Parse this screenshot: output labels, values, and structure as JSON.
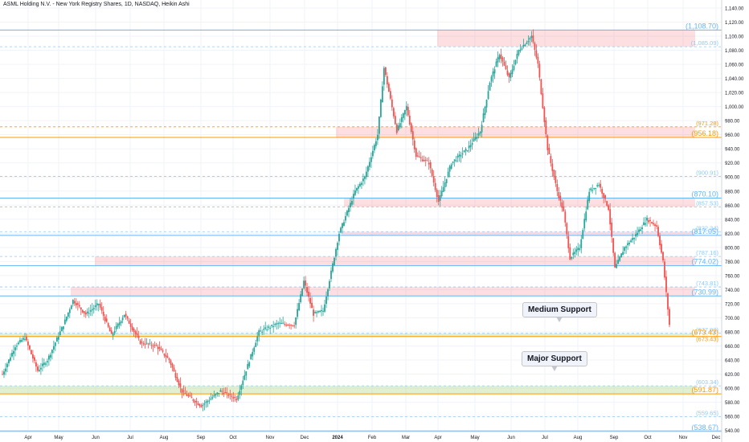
{
  "title": "ASML Holding N.V. - New York Registry Shares, 1D, NASDAQ, Heikin Ashi",
  "colors": {
    "up": "#26a69a",
    "down": "#ef5350",
    "blue_line": "#64b5f6",
    "orange_line": "#ff9800",
    "zone_red": "#f7c4c4",
    "zone_green": "#d9f0c3",
    "grid": "#f0f3fa"
  },
  "chart_data": {
    "type": "candlestick",
    "title": "ASML Holding N.V. - New York Registry Shares, 1D, NASDAQ, Heikin Ashi",
    "ylim": [
      535,
      1140
    ],
    "y_ticks": [
      540,
      560,
      580,
      600,
      620,
      640,
      660,
      680,
      700,
      720,
      740,
      760,
      780,
      800,
      820,
      840,
      860,
      880,
      900,
      920,
      940,
      960,
      980,
      1000,
      1020,
      1040,
      1060,
      1080,
      1100,
      1120,
      1140
    ],
    "y_tick_labels": [
      "540.00",
      "560.00",
      "580.00",
      "600.00",
      "620.00",
      "640.00",
      "660.00",
      "680.00",
      "700.00",
      "720.00",
      "740.00",
      "760.00",
      "780.00",
      "800.00",
      "820.00",
      "840.00",
      "860.00",
      "880.00",
      "900.00",
      "920.00",
      "940.00",
      "960.00",
      "980.00",
      "1,000.00",
      "1,020.00",
      "1,040.00",
      "1,060.00",
      "1,080.00",
      "1,100.00",
      "1,120.00",
      "1,140.00"
    ],
    "x_labels": [
      "Apr",
      "May",
      "Jun",
      "Jul",
      "Aug",
      "Sep",
      "Oct",
      "Nov",
      "Dec",
      "2024",
      "Feb",
      "Mar",
      "Apr",
      "May",
      "Jun",
      "Jul",
      "Aug",
      "Sep",
      "Oct",
      "Nov",
      "Dec"
    ],
    "series_anchors": [
      [
        0,
        620
      ],
      [
        8,
        660
      ],
      [
        14,
        672
      ],
      [
        22,
        625
      ],
      [
        28,
        640
      ],
      [
        38,
        690
      ],
      [
        44,
        725
      ],
      [
        52,
        705
      ],
      [
        60,
        720
      ],
      [
        68,
        675
      ],
      [
        76,
        705
      ],
      [
        86,
        665
      ],
      [
        96,
        660
      ],
      [
        104,
        640
      ],
      [
        112,
        595
      ],
      [
        124,
        575
      ],
      [
        136,
        596
      ],
      [
        146,
        585
      ],
      [
        160,
        680
      ],
      [
        172,
        692
      ],
      [
        182,
        690
      ],
      [
        188,
        752
      ],
      [
        194,
        705
      ],
      [
        200,
        710
      ],
      [
        210,
        820
      ],
      [
        220,
        880
      ],
      [
        226,
        900
      ],
      [
        234,
        960
      ],
      [
        238,
        1055
      ],
      [
        246,
        965
      ],
      [
        252,
        1000
      ],
      [
        258,
        930
      ],
      [
        266,
        920
      ],
      [
        272,
        865
      ],
      [
        280,
        920
      ],
      [
        290,
        940
      ],
      [
        298,
        965
      ],
      [
        304,
        1035
      ],
      [
        310,
        1075
      ],
      [
        316,
        1040
      ],
      [
        322,
        1080
      ],
      [
        330,
        1100
      ],
      [
        334,
        1060
      ],
      [
        340,
        940
      ],
      [
        346,
        880
      ],
      [
        350,
        850
      ],
      [
        354,
        785
      ],
      [
        360,
        800
      ],
      [
        366,
        880
      ],
      [
        372,
        890
      ],
      [
        378,
        855
      ],
      [
        382,
        770
      ],
      [
        388,
        800
      ],
      [
        394,
        815
      ],
      [
        402,
        840
      ],
      [
        408,
        830
      ],
      [
        412,
        780
      ],
      [
        416,
        690
      ]
    ],
    "levels": [
      {
        "label": "(1,108.70)",
        "value": 1108.7,
        "color": "#64b5f6",
        "style": "solid"
      },
      {
        "label": "(1,085.09)",
        "value": 1085.09,
        "color": "#90caf9",
        "style": "dashed"
      },
      {
        "label": "(971.28)",
        "value": 971.28,
        "color": "#ff9800",
        "style": "dashed"
      },
      {
        "label": "(956.18)",
        "value": 956.18,
        "color": "#ff9800",
        "style": "solid"
      },
      {
        "label": "(900.91)",
        "value": 900.91,
        "color": "#90caf9",
        "style": "dashed"
      },
      {
        "label": "(870.10)",
        "value": 870.1,
        "color": "#64b5f6",
        "style": "solid"
      },
      {
        "label": "(857.53)",
        "value": 857.53,
        "color": "#90caf9",
        "style": "dashed"
      },
      {
        "label": "(822.34)",
        "value": 822.34,
        "color": "#90caf9",
        "style": "dashed"
      },
      {
        "label": "(817.05)",
        "value": 817.05,
        "color": "#64b5f6",
        "style": "solid"
      },
      {
        "label": "(787.16)",
        "value": 787.16,
        "color": "#90caf9",
        "style": "dashed"
      },
      {
        "label": "(774.02)",
        "value": 774.02,
        "color": "#64b5f6",
        "style": "solid"
      },
      {
        "label": "(743.81)",
        "value": 743.81,
        "color": "#90caf9",
        "style": "dashed"
      },
      {
        "label": "(730.99)",
        "value": 730.99,
        "color": "#64b5f6",
        "style": "solid"
      },
      {
        "label": "(677.93)",
        "value": 677.93,
        "color": "#90caf9",
        "style": "dashed"
      },
      {
        "label": "(673.43)",
        "value": 673.43,
        "color": "#ff9800",
        "style": "solid"
      },
      {
        "label": "(673.43)",
        "value": 664.5,
        "color": "#ff9800",
        "style": "none"
      },
      {
        "label": "(603.34)",
        "value": 603.34,
        "color": "#90caf9",
        "style": "dashed"
      },
      {
        "label": "(591.87)",
        "value": 591.87,
        "color": "#ff9800",
        "style": "solid"
      },
      {
        "label": "(559.65)",
        "value": 559.65,
        "color": "#90caf9",
        "style": "dashed"
      },
      {
        "label": "(538.67)",
        "value": 538.67,
        "color": "#64b5f6",
        "style": "solid"
      }
    ],
    "zones": [
      {
        "from": 1085.09,
        "to": 1108.7,
        "color": "red",
        "start": "Apr"
      },
      {
        "from": 956.18,
        "to": 971.28,
        "color": "red",
        "start": "Feb"
      },
      {
        "from": 857.53,
        "to": 870.1,
        "color": "red",
        "start": "Feb"
      },
      {
        "from": 817.05,
        "to": 822.34,
        "color": "red",
        "start": "Feb"
      },
      {
        "from": 774.02,
        "to": 787.16,
        "color": "red",
        "start": "Jun"
      },
      {
        "from": 730.99,
        "to": 743.81,
        "color": "red",
        "start": "May"
      },
      {
        "from": 673.43,
        "to": 677.93,
        "color": "green",
        "start": "Apr"
      },
      {
        "from": 591.87,
        "to": 603.34,
        "color": "green",
        "start": "Apr"
      }
    ],
    "annotations": [
      "Medium Support",
      "Major Support"
    ],
    "grid": true
  },
  "callouts": {
    "medium": "Medium Support",
    "major": "Major Support"
  }
}
